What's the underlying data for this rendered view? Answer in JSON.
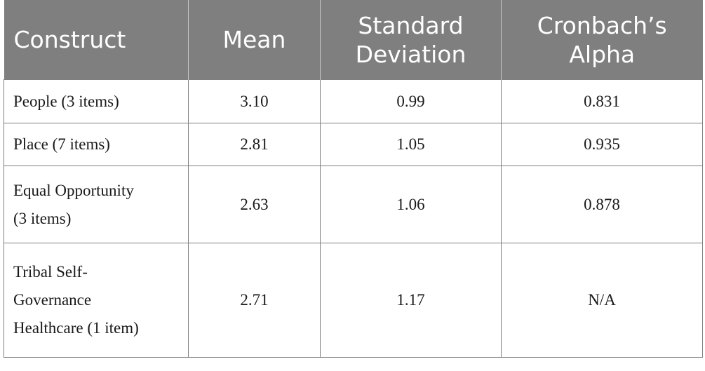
{
  "table": {
    "headers": [
      [
        "Construct"
      ],
      [
        "Mean"
      ],
      [
        "Standard",
        "Deviation"
      ],
      [
        "Cronbach’s",
        "Alpha"
      ]
    ],
    "rows": [
      {
        "construct": [
          "People (3 items)"
        ],
        "mean": "3.10",
        "sd": "0.99",
        "alpha": "0.831"
      },
      {
        "construct": [
          "Place (7 items)"
        ],
        "mean": "2.81",
        "sd": "1.05",
        "alpha": "0.935"
      },
      {
        "construct": [
          "Equal Opportunity",
          "(3 items)"
        ],
        "mean": "2.63",
        "sd": "1.06",
        "alpha": "0.878"
      },
      {
        "construct": [
          "Tribal Self-",
          "Governance",
          "Healthcare (1 item)"
        ],
        "mean": "2.71",
        "sd": "1.17",
        "alpha": "N/A"
      }
    ]
  },
  "colors": {
    "header_bg": "#7f7f7f",
    "header_text": "#ffffff",
    "border": "#7f7f7f"
  }
}
